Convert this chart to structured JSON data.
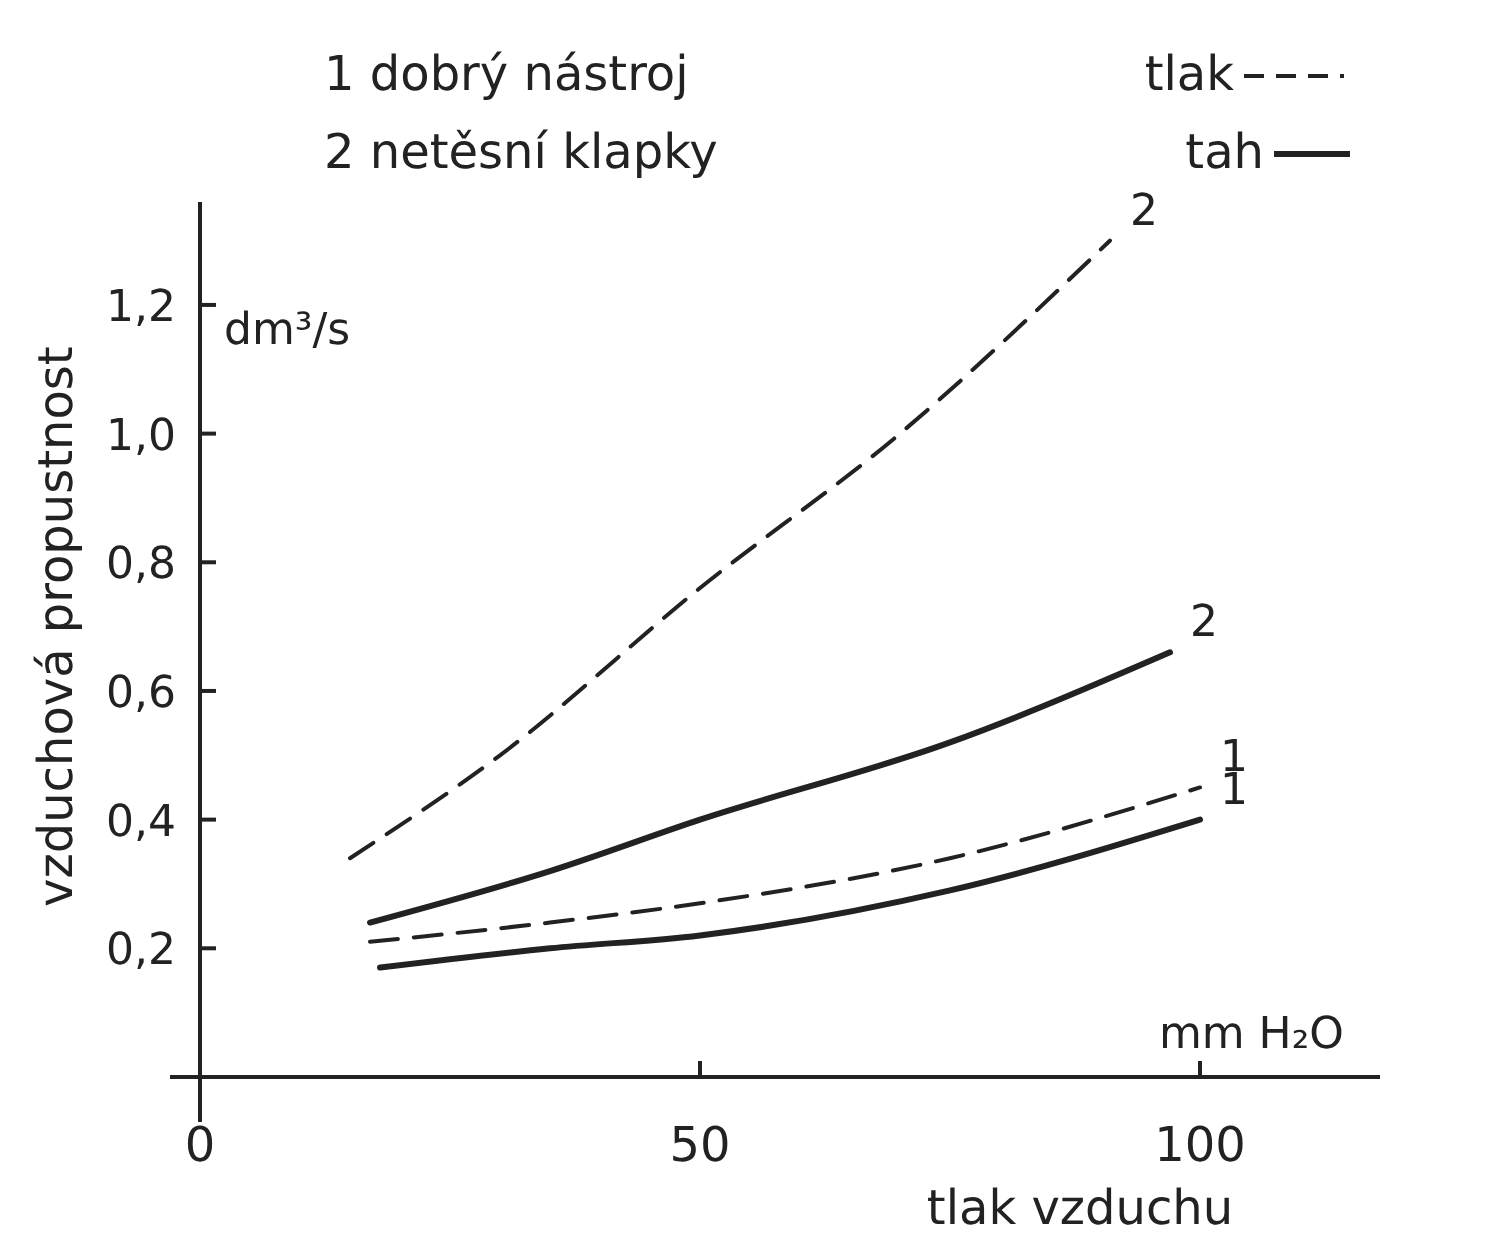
{
  "chart_data": {
    "type": "line",
    "xlabel": "tlak vzduchu",
    "ylabel": "vzduchová propustnost",
    "xlim": [
      -3,
      118
    ],
    "ylim": [
      -0.07,
      1.36
    ],
    "xticks": [
      0,
      50,
      100
    ],
    "yticks": [
      {
        "value": 0.2,
        "label": "0,2"
      },
      {
        "value": 0.4,
        "label": "0,4"
      },
      {
        "value": 0.6,
        "label": "0,6"
      },
      {
        "value": 0.8,
        "label": "0,8"
      },
      {
        "value": 1.0,
        "label": "1,0"
      },
      {
        "value": 1.2,
        "label": "1,2"
      }
    ],
    "grid": false,
    "marker": "none",
    "series": [
      {
        "name": "2",
        "color": "#222222",
        "line_style": "dashed",
        "x": [
          15,
          30,
          50,
          70,
          91
        ],
        "values": [
          0.34,
          0.5,
          0.76,
          1.0,
          1.3
        ]
      },
      {
        "name": "2",
        "color": "#222222",
        "line_style": "solid",
        "x": [
          17,
          35,
          50,
          75,
          97
        ],
        "values": [
          0.24,
          0.32,
          0.4,
          0.52,
          0.66
        ]
      },
      {
        "name": "1",
        "color": "#222222",
        "line_style": "dashed",
        "x": [
          17,
          35,
          50,
          75,
          100
        ],
        "values": [
          0.21,
          0.24,
          0.27,
          0.34,
          0.45
        ]
      },
      {
        "name": "1",
        "color": "#222222",
        "line_style": "solid",
        "x": [
          18,
          35,
          50,
          75,
          100
        ],
        "values": [
          0.17,
          0.2,
          0.22,
          0.29,
          0.4
        ]
      }
    ],
    "annotations": [
      "1 dobrý nástroj",
      "2 netěsní klapky",
      "tlak",
      "tah",
      "dm³/s",
      "mm H₂O"
    ]
  }
}
